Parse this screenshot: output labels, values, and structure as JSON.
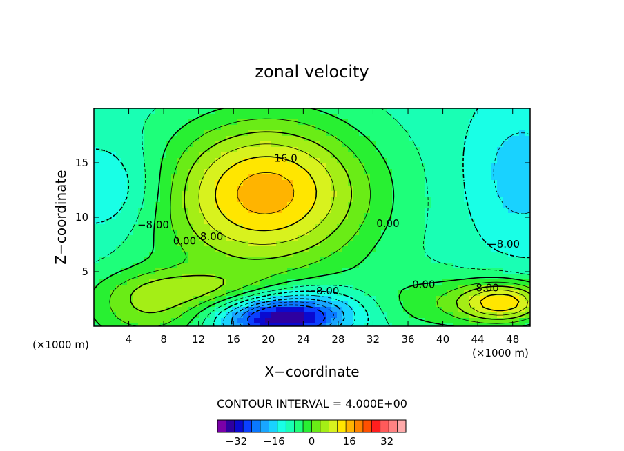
{
  "chart_data": {
    "type": "heatmap",
    "title": "zonal velocity",
    "xlabel": "X−coordinate",
    "ylabel": "Z−coordinate",
    "x_units_label": "(×1000 m)",
    "y_units_label": "(×1000 m)",
    "xlim": [
      0,
      50
    ],
    "ylim": [
      0,
      20
    ],
    "x_ticks": [
      4,
      8,
      12,
      16,
      20,
      24,
      28,
      32,
      36,
      40,
      44,
      48
    ],
    "x_tick_labels": [
      "4",
      "8",
      "12",
      "16",
      "20",
      "24",
      "28",
      "32",
      "36",
      "40",
      "44",
      "48"
    ],
    "y_ticks": [
      5,
      10,
      15
    ],
    "y_tick_labels": [
      "5",
      "10",
      "15"
    ],
    "contour_interval_text": "CONTOUR INTERVAL = 4.000E+00",
    "contour_labels": [
      {
        "text": "16.0",
        "x": 22.0,
        "y": 15.1
      },
      {
        "text": "−8.00",
        "x": 6.8,
        "y": 9.0
      },
      {
        "text": "0.00",
        "x": 10.4,
        "y": 7.5
      },
      {
        "text": "8.00",
        "x": 13.5,
        "y": 7.9
      },
      {
        "text": "0.00",
        "x": 33.7,
        "y": 9.1
      },
      {
        "text": "−8.00",
        "x": 47.0,
        "y": 7.2
      },
      {
        "text": "−8.00",
        "x": 26.3,
        "y": 2.9
      },
      {
        "text": "0.00",
        "x": 37.8,
        "y": 3.5
      },
      {
        "text": "8.00",
        "x": 45.1,
        "y": 3.2
      }
    ],
    "colorbar": {
      "min": -40,
      "max": 40,
      "step": 4,
      "tick_values": [
        -32,
        -16,
        0,
        16,
        32
      ],
      "tick_labels": [
        "−32",
        "−16",
        "0",
        "16",
        "32"
      ],
      "colors": [
        "#7a00a8",
        "#2e00a0",
        "#0a0ad0",
        "#0a40ff",
        "#0a78ff",
        "#19a6ff",
        "#19d2ff",
        "#19ffe6",
        "#19ffb4",
        "#1eff7a",
        "#28f032",
        "#6aec16",
        "#a4ee16",
        "#d8f21e",
        "#ffe600",
        "#ffb400",
        "#ff8200",
        "#ff5000",
        "#ff1e1e",
        "#ff5a5a",
        "#ff8282",
        "#ffaaaa"
      ]
    },
    "field": {
      "background": -6,
      "features": [
        {
          "x": 20,
          "y": 13,
          "sx": 8,
          "sy": 4.5,
          "v": 22
        },
        {
          "x": 18,
          "y": 9,
          "sx": 10,
          "sy": 5,
          "v": 8
        },
        {
          "x": 21,
          "y": 0.6,
          "sx": 4.5,
          "sy": 1.4,
          "v": -26
        },
        {
          "x": 26,
          "y": 1.5,
          "sx": 5,
          "sy": 1.6,
          "v": -10
        },
        {
          "x": 6,
          "y": 1.5,
          "sx": 5,
          "sy": 2.2,
          "v": 12
        },
        {
          "x": 2,
          "y": 12.5,
          "sx": 4.5,
          "sy": 3,
          "v": -8
        },
        {
          "x": 49,
          "y": 14,
          "sx": 4.5,
          "sy": 5,
          "v": -8
        },
        {
          "x": 47,
          "y": 2.2,
          "sx": 3.5,
          "sy": 1.3,
          "v": 22
        },
        {
          "x": 39,
          "y": 2,
          "sx": 7,
          "sy": 2,
          "v": 8
        },
        {
          "x": 12,
          "y": 3.5,
          "sx": 6,
          "sy": 1.2,
          "v": 8
        }
      ]
    }
  }
}
